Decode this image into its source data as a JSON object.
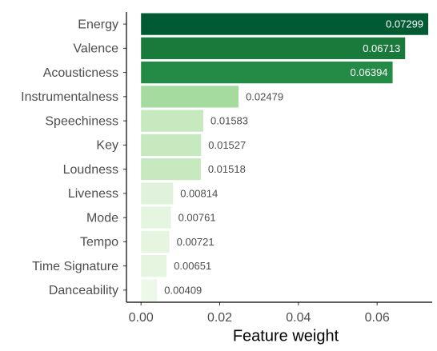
{
  "chart_data": {
    "type": "bar",
    "orientation": "horizontal",
    "x_label": "Feature weight",
    "categories": [
      "Energy",
      "Valence",
      "Acousticness",
      "Instrumentalness",
      "Speechiness",
      "Key",
      "Loudness",
      "Liveness",
      "Mode",
      "Tempo",
      "Time Signature",
      "Danceability"
    ],
    "values": [
      0.07299,
      0.06713,
      0.06394,
      0.02479,
      0.01583,
      0.01527,
      0.01518,
      0.00814,
      0.00761,
      0.00721,
      0.00651,
      0.00409
    ],
    "colors": [
      "#005a32",
      "#1a7a3c",
      "#238b45",
      "#a6dba0",
      "#c7e9c0",
      "#c7e9c0",
      "#c7e9c0",
      "#e0f2dc",
      "#e5f5e0",
      "#e5f5e0",
      "#e5f5e0",
      "#edf8e9"
    ],
    "xlim": [
      -0.0037,
      0.074
    ],
    "xticks": [
      {
        "value": 0,
        "label": "0.00"
      },
      {
        "value": 0.02,
        "label": "0.02"
      },
      {
        "value": 0.04,
        "label": "0.04"
      },
      {
        "value": 0.06,
        "label": "0.06"
      }
    ]
  }
}
